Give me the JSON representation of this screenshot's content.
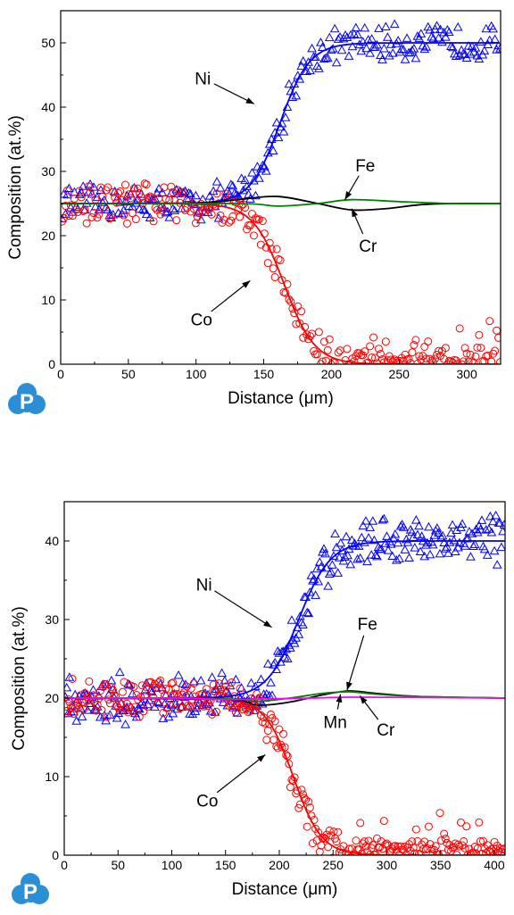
{
  "logo_letter": "P",
  "chart_data": [
    {
      "type": "scatter",
      "xlabel": "Distance (μm)",
      "ylabel": "Composition (at.%)",
      "xlim": [
        0,
        325
      ],
      "ylim": [
        0,
        55
      ],
      "xticks": [
        0,
        50,
        100,
        150,
        200,
        250,
        300
      ],
      "yticks": [
        0,
        10,
        20,
        30,
        40,
        50
      ],
      "grid": false,
      "series": [
        {
          "name": "Ni",
          "color": "#0000ff",
          "marker": "triangle",
          "fit": {
            "start": 25,
            "end": 50,
            "center": 162,
            "width": 48
          },
          "scatter_amplitude": 1.6
        },
        {
          "name": "Co",
          "color": "#ff0000",
          "marker": "circle",
          "fit": {
            "start": 25,
            "end": 0,
            "center": 165,
            "width": 50
          },
          "scatter_amplitude": 1.8
        },
        {
          "name": "Cr",
          "color": "#000000",
          "marker": "none",
          "line": [
            [
              0,
              25
            ],
            [
              100,
              25.1
            ],
            [
              130,
              25.6
            ],
            [
              160,
              26.1
            ],
            [
              190,
              25
            ],
            [
              215,
              24
            ],
            [
              240,
              24.2
            ],
            [
              265,
              24.8
            ],
            [
              290,
              25
            ],
            [
              325,
              25
            ]
          ]
        },
        {
          "name": "Fe",
          "color": "#008000",
          "marker": "none",
          "line": [
            [
              0,
              25
            ],
            [
              130,
              25
            ],
            [
              160,
              24.6
            ],
            [
              190,
              25
            ],
            [
              215,
              25.6
            ],
            [
              250,
              25.3
            ],
            [
              290,
              25
            ],
            [
              325,
              25
            ]
          ]
        }
      ],
      "annotations": [
        {
          "text": "Ni",
          "label_at": [
            105,
            44.5
          ],
          "arrow_to": [
            143,
            40.5
          ]
        },
        {
          "text": "Fe",
          "label_at": [
            225,
            31
          ],
          "arrow_to": [
            210,
            25.6
          ]
        },
        {
          "text": "Cr",
          "label_at": [
            227,
            18.5
          ],
          "arrow_to": [
            215,
            24.2
          ]
        },
        {
          "text": "Co",
          "label_at": [
            104,
            7
          ],
          "arrow_to": [
            140,
            13
          ]
        }
      ]
    },
    {
      "type": "scatter",
      "xlabel": "Distance (μm)",
      "ylabel": "Composition (at.%)",
      "xlim": [
        0,
        410
      ],
      "ylim": [
        0,
        45
      ],
      "xticks": [
        0,
        50,
        100,
        150,
        200,
        250,
        300,
        350,
        400
      ],
      "yticks": [
        0,
        10,
        20,
        30,
        40
      ],
      "grid": false,
      "series": [
        {
          "name": "Ni",
          "color": "#0000ff",
          "marker": "triangle",
          "fit": {
            "start": 20,
            "end": 40,
            "center": 218,
            "width": 65
          },
          "scatter_amplitude": 1.8
        },
        {
          "name": "Co",
          "color": "#ff0000",
          "marker": "circle",
          "fit": {
            "start": 20,
            "end": 0,
            "center": 213,
            "width": 58
          },
          "scatter_amplitude": 1.4
        },
        {
          "name": "Cr",
          "color": "#000000",
          "marker": "none",
          "line": [
            [
              0,
              20
            ],
            [
              150,
              19.8
            ],
            [
              180,
              19.1
            ],
            [
              210,
              19.5
            ],
            [
              240,
              20.4
            ],
            [
              265,
              20.9
            ],
            [
              290,
              20.6
            ],
            [
              330,
              20.2
            ],
            [
              410,
              20
            ]
          ]
        },
        {
          "name": "Fe",
          "color": "#008000",
          "marker": "none",
          "line": [
            [
              0,
              20
            ],
            [
              150,
              19.9
            ],
            [
              180,
              19.6
            ],
            [
              210,
              20
            ],
            [
              240,
              20.6
            ],
            [
              265,
              20.8
            ],
            [
              290,
              20.5
            ],
            [
              330,
              20.2
            ],
            [
              410,
              20
            ]
          ]
        },
        {
          "name": "Mn",
          "color": "#ff00ff",
          "marker": "none",
          "line": [
            [
              0,
              20
            ],
            [
              100,
              20
            ],
            [
              150,
              19.8
            ],
            [
              190,
              19.9
            ],
            [
              230,
              20
            ],
            [
              260,
              20.1
            ],
            [
              300,
              20.1
            ],
            [
              410,
              20
            ]
          ]
        }
      ],
      "annotations": [
        {
          "text": "Ni",
          "label_at": [
            130,
            34.5
          ],
          "arrow_to": [
            193,
            29
          ]
        },
        {
          "text": "Fe",
          "label_at": [
            282,
            29.5
          ],
          "arrow_to": [
            263,
            21
          ]
        },
        {
          "text": "Mn",
          "label_at": [
            252,
            17
          ],
          "arrow_to": [
            257,
            20.5
          ]
        },
        {
          "text": "Cr",
          "label_at": [
            299,
            16
          ],
          "arrow_to": [
            275,
            20.3
          ]
        },
        {
          "text": "Co",
          "label_at": [
            133,
            7
          ],
          "arrow_to": [
            187,
            12.8
          ]
        }
      ]
    }
  ]
}
